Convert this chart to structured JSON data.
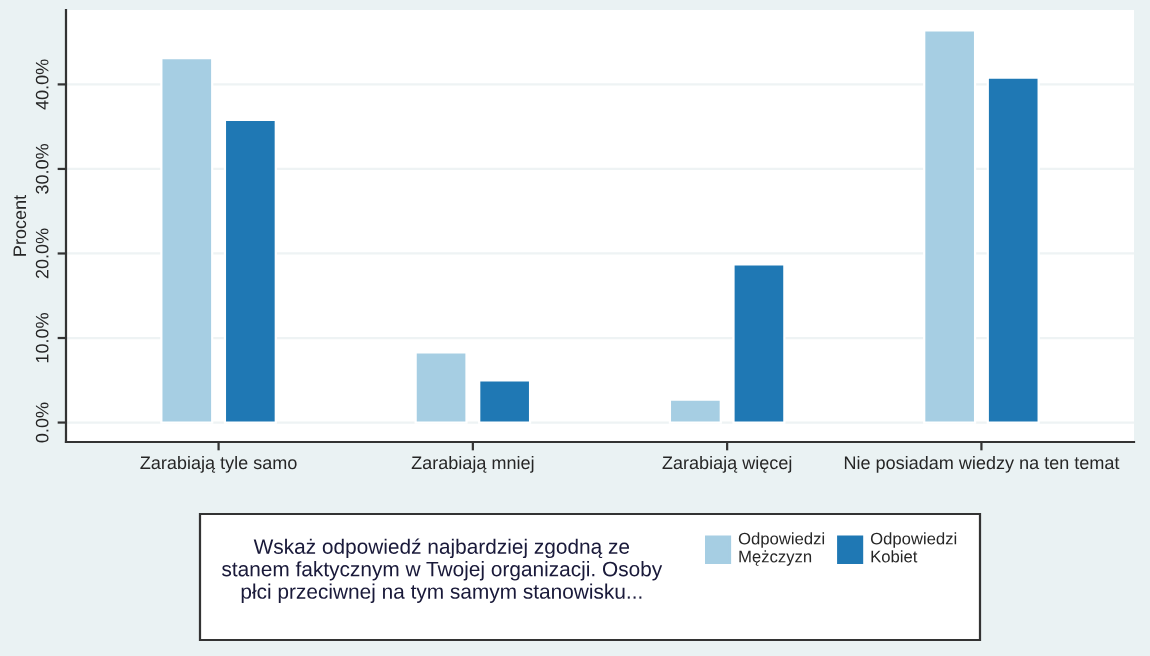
{
  "chart_data": {
    "type": "bar",
    "ylabel": "Procent",
    "legend_title": "Wskaż odpowiedź najbardziej zgodną ze\nstanem faktycznym w Twojej organizacji. Osoby\npłci przeciwnej na tym samym stanowisku...",
    "categories": [
      "Zarabiają tyle samo",
      "Zarabiają mniej",
      "Zarabiają więcej",
      "Nie posiadam wiedzy na ten temat"
    ],
    "series": [
      {
        "name": "Odpowiedzi\nMężczyzn",
        "color": "#a6cee3",
        "values": [
          43.1,
          8.3,
          2.7,
          46.4
        ]
      },
      {
        "name": "Odpowiedzi\nKobiet",
        "color": "#1f78b4",
        "values": [
          35.8,
          5.0,
          18.7,
          40.8
        ]
      }
    ],
    "ylim": [
      -2.3,
      48.8
    ],
    "yticks": [
      {
        "value": 0,
        "label": "0.0%"
      },
      {
        "value": 10,
        "label": "10.0%"
      },
      {
        "value": 20,
        "label": "20.0%"
      },
      {
        "value": 30,
        "label": "30.0%"
      },
      {
        "value": 40,
        "label": "40.0%"
      }
    ],
    "grid": "y",
    "legend": "bottom"
  }
}
